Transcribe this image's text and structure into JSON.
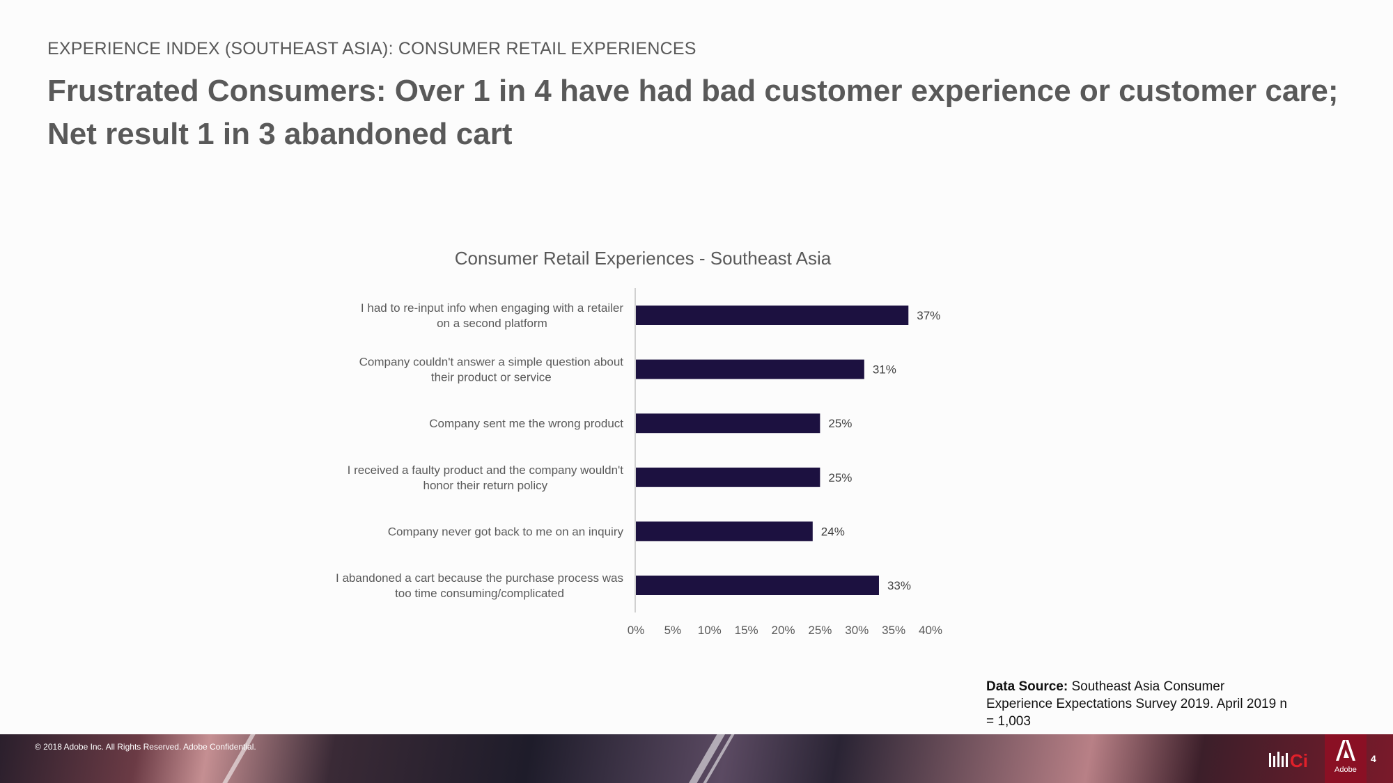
{
  "header": {
    "eyebrow": "EXPERIENCE INDEX (SOUTHEAST ASIA): CONSUMER RETAIL EXPERIENCES",
    "headline_line1": "Frustrated Consumers: Over 1 in 4 have had bad customer experience or customer care;",
    "headline_line2": "Net result 1 in 3 abandoned cart"
  },
  "chart_data": {
    "type": "bar",
    "orientation": "horizontal",
    "title": "Consumer Retail Experiences - Southeast Asia",
    "categories": [
      [
        "I had to re-input info when engaging with a retailer",
        "on a second platform"
      ],
      [
        "Company couldn't answer a simple question about",
        "their product or service"
      ],
      [
        "Company sent me the wrong product"
      ],
      [
        "I received a faulty product and the company wouldn't",
        "honor their return policy"
      ],
      [
        "Company never got back to me on an inquiry"
      ],
      [
        "I abandoned a cart because the purchase process was",
        "too time consuming/complicated"
      ]
    ],
    "values": [
      37,
      31,
      25,
      25,
      24,
      33
    ],
    "data_labels": [
      "37%",
      "31%",
      "25%",
      "25%",
      "24%",
      "33%"
    ],
    "xlim": [
      0,
      40
    ],
    "xticks": [
      0,
      5,
      10,
      15,
      20,
      25,
      30,
      35,
      40
    ],
    "xtick_labels": [
      "0%",
      "5%",
      "10%",
      "15%",
      "20%",
      "25%",
      "30%",
      "35%",
      "40%"
    ],
    "bar_color": "#1c1140",
    "grid": false
  },
  "source": {
    "label": "Data Source:",
    "text": "Southeast Asia Consumer Experience Expectations Survey 2019. April 2019 n = 1,003"
  },
  "footer": {
    "copyright": "© 2018 Adobe Inc.  All Rights Reserved.  Adobe Confidential.",
    "brand": "Adobe",
    "page_number": "4",
    "accent_color": "#8a1024"
  }
}
